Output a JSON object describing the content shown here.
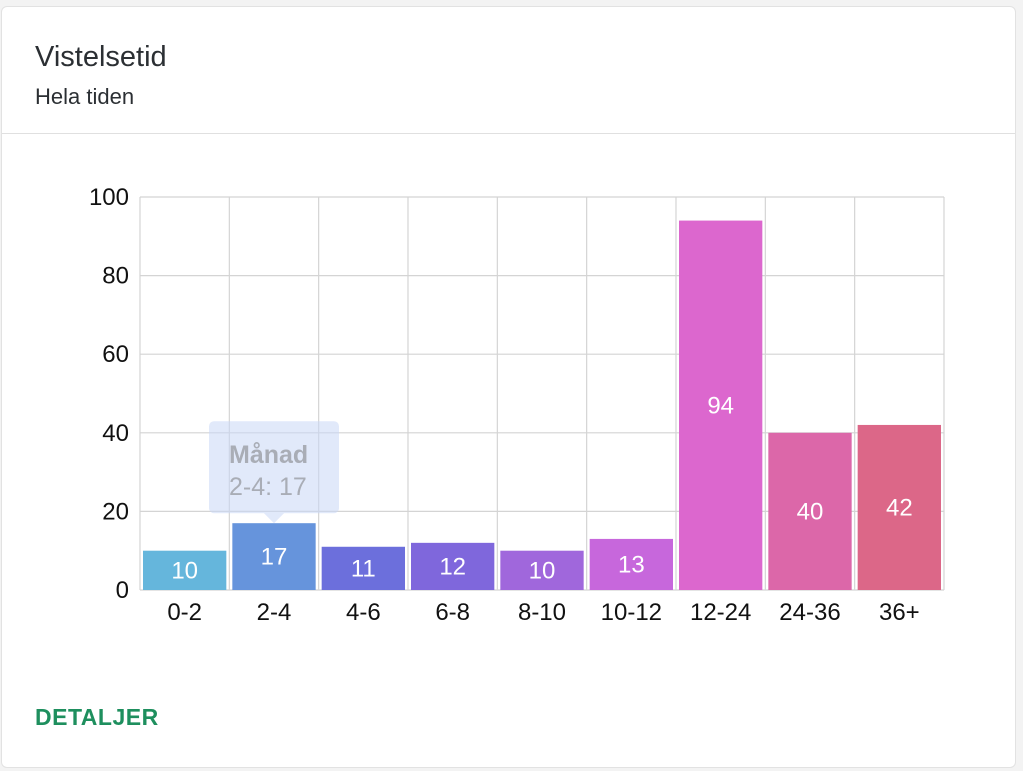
{
  "card": {
    "title": "Vistelsetid",
    "subtitle": "Hela tiden",
    "details_label": "DETALJER"
  },
  "tooltip": {
    "title": "Månad",
    "text": "2-4: 17",
    "category_index": 1
  },
  "chart_data": {
    "type": "bar",
    "categories": [
      "0-2",
      "2-4",
      "4-6",
      "6-8",
      "8-10",
      "10-12",
      "12-24",
      "24-36",
      "36+"
    ],
    "values": [
      10,
      17,
      11,
      12,
      10,
      13,
      94,
      40,
      42
    ],
    "colors": [
      "#65b6dc",
      "#6694dc",
      "#6c6fdc",
      "#7f67dc",
      "#a067dc",
      "#c767dc",
      "#dc67ce",
      "#dc67a9",
      "#dc6788"
    ],
    "yticks": [
      0,
      20,
      40,
      60,
      80,
      100
    ],
    "ylim": [
      0,
      100
    ],
    "grid": true,
    "data_labels": true
  }
}
